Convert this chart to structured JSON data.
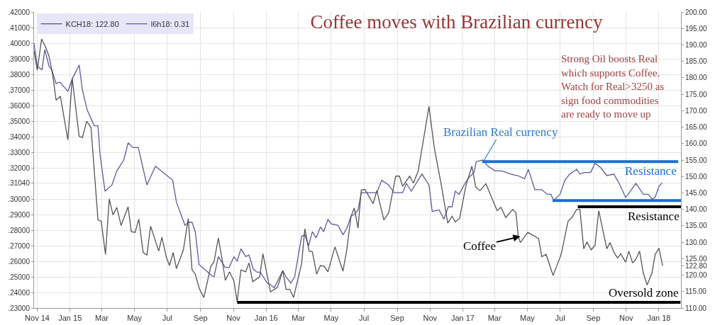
{
  "chart_data": {
    "type": "line",
    "title": "Coffee moves with Brazilian currency",
    "annotations": [
      "Strong Oil boosts Real\nwhich supports Coffee.\nWatch for Real>3250 as\nsign food commodities\nare ready to move up",
      {
        "text": "Brazilian Real currency",
        "x": "2017-02-08",
        "y": 0.324
      },
      {
        "text": "Coffee",
        "x": "2017-04-18",
        "y": 0.276
      }
    ],
    "series": [
      {
        "name": "KCH18: 122.80",
        "color": "#555555",
        "axis": "y2",
        "x": [
          "2014-10-26",
          "2014-11-01",
          "2014-11-09",
          "2014-11-17",
          "2014-11-23",
          "2014-11-30",
          "2014-12-06",
          "2014-12-14",
          "2014-12-28",
          "2015-01-05",
          "2015-01-18",
          "2015-01-24",
          "2015-02-01",
          "2015-02-09",
          "2015-02-22",
          "2015-02-28",
          "2015-03-08",
          "2015-03-15",
          "2015-03-22",
          "2015-03-29",
          "2015-04-06",
          "2015-04-19",
          "2015-04-25",
          "2015-05-02",
          "2015-05-09",
          "2015-05-17",
          "2015-05-24",
          "2015-05-31",
          "2015-06-15",
          "2015-06-21",
          "2015-06-29",
          "2015-07-05",
          "2015-07-12",
          "2015-07-18",
          "2015-07-31",
          "2015-08-09",
          "2015-08-16",
          "2015-08-22",
          "2015-08-30",
          "2015-09-07",
          "2015-09-20",
          "2015-09-26",
          "2015-10-04",
          "2015-10-11",
          "2015-10-17",
          "2015-10-25",
          "2015-11-02",
          "2015-11-08",
          "2015-11-15",
          "2015-11-24",
          "2015-11-30",
          "2015-12-07",
          "2015-12-20",
          "2015-12-26",
          "2016-01-09",
          "2016-01-22",
          "2016-02-01",
          "2016-02-07",
          "2016-02-14",
          "2016-02-21",
          "2016-03-07",
          "2016-03-13",
          "2016-03-21",
          "2016-03-27",
          "2016-04-04",
          "2016-04-11",
          "2016-04-18",
          "2016-04-25",
          "2016-05-08",
          "2016-05-23",
          "2016-05-30",
          "2016-06-07",
          "2016-06-13",
          "2016-06-20",
          "2016-06-26",
          "2016-07-03",
          "2016-07-18",
          "2016-07-25",
          "2016-08-07",
          "2016-08-16",
          "2016-08-29",
          "2016-09-05",
          "2016-09-11",
          "2016-09-24",
          "2016-10-01",
          "2016-10-10",
          "2016-10-30",
          "2016-11-09",
          "2016-11-22",
          "2016-12-04",
          "2016-12-12",
          "2016-12-18",
          "2016-12-26",
          "2017-01-07",
          "2017-01-18",
          "2017-01-25",
          "2017-02-02",
          "2017-02-13",
          "2017-03-02",
          "2017-03-06",
          "2017-03-13",
          "2017-03-22",
          "2017-04-04",
          "2017-04-10",
          "2017-04-14",
          "2017-04-18",
          "2017-05-02",
          "2017-05-22",
          "2017-05-28",
          "2017-06-05",
          "2017-06-18",
          "2017-06-27",
          "2017-07-03",
          "2017-07-16",
          "2017-07-23",
          "2017-08-01",
          "2017-08-07",
          "2017-08-14",
          "2017-08-20",
          "2017-08-28",
          "2017-09-04",
          "2017-09-11",
          "2017-09-26",
          "2017-10-02",
          "2017-10-10",
          "2017-10-16",
          "2017-10-22",
          "2017-10-31",
          "2017-11-06",
          "2017-11-13",
          "2017-11-19",
          "2017-11-26",
          "2017-12-03",
          "2017-12-10",
          "2017-12-19",
          "2017-12-25",
          "2018-01-01",
          "2018-01-08"
        ],
        "values": [
          188.2,
          182.3,
          191.8,
          189.2,
          186.5,
          180.6,
          173.2,
          174.4,
          161.1,
          179.9,
          162.2,
          161.8,
          166.8,
          164.9,
          136.8,
          136.4,
          126.3,
          143.2,
          138.3,
          140.6,
          135.1,
          140.8,
          133.2,
          133.0,
          137.0,
          126.9,
          126.1,
          134.9,
          127.3,
          131.5,
          125.6,
          122.9,
          126.9,
          122.0,
          127.7,
          137.2,
          121.6,
          120.3,
          115.7,
          113.2,
          122.7,
          124.1,
          131.3,
          124.8,
          118.4,
          121.0,
          118.2,
          111.9,
          121.6,
          121.0,
          123.7,
          118.0,
          119.5,
          126.5,
          114.9,
          116.3,
          121.4,
          115.7,
          115.7,
          113.2,
          123.5,
          134.1,
          127.3,
          127.1,
          120.3,
          122.9,
          122.7,
          121.0,
          128.6,
          121.2,
          127.7,
          137.9,
          140.4,
          134.3,
          145.9,
          146.0,
          141.7,
          145.7,
          136.8,
          138.9,
          150.1,
          150.1,
          147.0,
          150.1,
          148.0,
          151.6,
          171.3,
          158.6,
          147.4,
          135.8,
          137.9,
          136.2,
          137.2,
          147.4,
          153.1,
          146.8,
          145.7,
          147.8,
          141.1,
          139.6,
          140.6,
          137.5,
          140.0,
          138.9,
          132.0,
          129.9,
          133.0,
          131.1,
          125.6,
          126.3,
          119.9,
          123.7,
          126.3,
          136.4,
          137.5,
          140.0,
          140.0,
          128.0,
          130.1,
          127.7,
          129.0,
          139.6,
          128.0,
          129.9,
          126.7,
          125.2,
          126.5,
          123.9,
          127.3,
          123.7,
          124.8,
          127.3,
          120.6,
          117.0,
          120.6,
          126.3,
          128.2,
          122.8
        ]
      },
      {
        "name": "l6h18: 0.31",
        "color": "#5a5aa0",
        "axis": "y",
        "x": [
          "2014-10-26",
          "2014-11-01",
          "2014-11-10",
          "2014-11-15",
          "2014-11-23",
          "2014-11-28",
          "2014-12-06",
          "2014-12-13",
          "2014-12-28",
          "2015-01-05",
          "2015-01-18",
          "2015-01-24",
          "2015-02-02",
          "2015-02-15",
          "2015-02-22",
          "2015-02-26",
          "2015-03-07",
          "2015-03-20",
          "2015-03-29",
          "2015-04-11",
          "2015-04-19",
          "2015-04-28",
          "2015-05-08",
          "2015-05-24",
          "2015-06-09",
          "2015-07-11",
          "2015-07-18",
          "2015-08-03",
          "2015-08-09",
          "2015-08-16",
          "2015-08-22",
          "2015-08-29",
          "2015-09-21",
          "2015-09-26",
          "2015-10-04",
          "2015-10-17",
          "2015-10-24",
          "2015-11-02",
          "2015-11-08",
          "2015-11-15",
          "2015-11-24",
          "2015-11-30",
          "2015-12-08",
          "2015-12-15",
          "2015-12-21",
          "2016-01-03",
          "2016-01-09",
          "2016-01-16",
          "2016-02-01",
          "2016-02-07",
          "2016-02-16",
          "2016-02-23",
          "2016-03-07",
          "2016-03-13",
          "2016-03-20",
          "2016-03-27",
          "2016-04-03",
          "2016-04-11",
          "2016-04-17",
          "2016-04-25",
          "2016-05-01",
          "2016-05-14",
          "2016-05-23",
          "2016-05-30",
          "2016-06-07",
          "2016-06-13",
          "2016-06-20",
          "2016-06-26",
          "2016-07-08",
          "2016-07-25",
          "2016-08-03",
          "2016-08-16",
          "2016-08-26",
          "2016-09-11",
          "2016-09-18",
          "2016-09-27",
          "2016-10-17",
          "2016-10-30",
          "2016-11-05",
          "2016-11-18",
          "2016-11-27",
          "2016-12-05",
          "2016-12-12",
          "2016-12-18",
          "2016-12-25",
          "2017-01-05",
          "2017-01-13",
          "2017-01-22",
          "2017-01-26",
          "2017-02-07",
          "2017-02-17",
          "2017-03-02",
          "2017-03-15",
          "2017-03-31",
          "2017-04-13",
          "2017-04-26",
          "2017-05-03",
          "2017-05-15",
          "2017-05-28",
          "2017-06-07",
          "2017-06-14",
          "2017-06-19",
          "2017-07-01",
          "2017-07-10",
          "2017-07-19",
          "2017-08-01",
          "2017-08-07",
          "2017-08-15",
          "2017-08-27",
          "2017-09-04",
          "2017-09-15",
          "2017-09-26",
          "2017-10-09",
          "2017-10-19",
          "2017-10-31",
          "2017-11-07",
          "2017-11-19",
          "2017-12-03",
          "2017-12-12",
          "2017-12-19",
          "2017-12-25",
          "2018-01-01",
          "2018-01-07"
        ],
        "values": [
          0.4,
          0.385,
          0.383,
          0.396,
          0.385,
          0.383,
          0.374,
          0.375,
          0.369,
          0.377,
          0.386,
          0.37,
          0.357,
          0.347,
          0.347,
          0.328,
          0.305,
          0.309,
          0.318,
          0.325,
          0.336,
          0.333,
          0.333,
          0.309,
          0.321,
          0.312,
          0.298,
          0.283,
          0.285,
          0.285,
          0.279,
          0.258,
          0.251,
          0.25,
          0.263,
          0.256,
          0.256,
          0.263,
          0.26,
          0.268,
          0.263,
          0.264,
          0.255,
          0.253,
          0.253,
          0.246,
          0.245,
          0.243,
          0.254,
          0.25,
          0.246,
          0.25,
          0.276,
          0.277,
          0.27,
          0.279,
          0.275,
          0.282,
          0.279,
          0.287,
          0.284,
          0.283,
          0.277,
          0.281,
          0.289,
          0.29,
          0.293,
          0.304,
          0.304,
          0.304,
          0.312,
          0.309,
          0.304,
          0.304,
          0.31,
          0.305,
          0.316,
          0.309,
          0.292,
          0.293,
          0.287,
          0.295,
          0.295,
          0.305,
          0.303,
          0.31,
          0.314,
          0.317,
          0.324,
          0.325,
          0.321,
          0.318,
          0.318,
          0.316,
          0.315,
          0.313,
          0.319,
          0.306,
          0.306,
          0.303,
          0.303,
          0.299,
          0.303,
          0.312,
          0.316,
          0.319,
          0.316,
          0.317,
          0.317,
          0.323,
          0.32,
          0.315,
          0.316,
          0.31,
          0.301,
          0.304,
          0.31,
          0.303,
          0.303,
          0.3,
          0.301,
          0.308,
          0.3104
        ]
      },
      {
        "name": "Resistance",
        "color": "#1a6fd0",
        "axis": "y",
        "x": [
          "2017-02-06",
          "2018-02-06"
        ],
        "values": [
          0.324,
          0.324
        ]
      },
      {
        "color": "#1a6fd0",
        "axis": "y",
        "x": [
          "2017-06-17",
          "2018-02-11"
        ],
        "values": [
          0.299,
          0.299
        ]
      },
      {
        "name": "Resistance",
        "color": "#000000",
        "axis": "y2",
        "x": [
          "2017-08-03",
          "2018-02-11"
        ],
        "values": [
          140.8,
          140.8
        ]
      },
      {
        "name": "Oversold zone",
        "color": "#000000",
        "axis": "y2",
        "x": [
          "2015-11-08",
          "2018-02-10"
        ],
        "values": [
          111.7,
          111.7
        ]
      }
    ],
    "xlim": [
      "2014-10-26",
      "2018-02-11"
    ],
    "xticks": [
      {
        "value": "2014-11-01",
        "label": "Nov 14"
      },
      {
        "value": "2015-01-01",
        "label": "Jan 15"
      },
      {
        "value": "2015-03-01",
        "label": "Mar"
      },
      {
        "value": "2015-05-01",
        "label": "May"
      },
      {
        "value": "2015-07-01",
        "label": "Jul"
      },
      {
        "value": "2015-09-01",
        "label": "Sep"
      },
      {
        "value": "2015-11-01",
        "label": "Nov"
      },
      {
        "value": "2016-01-01",
        "label": "Jan 16"
      },
      {
        "value": "2016-03-01",
        "label": "Mar"
      },
      {
        "value": "2016-05-01",
        "label": "May"
      },
      {
        "value": "2016-07-01",
        "label": "Jul"
      },
      {
        "value": "2016-09-01",
        "label": "Sep"
      },
      {
        "value": "2016-11-01",
        "label": "Nov"
      },
      {
        "value": "2017-01-01",
        "label": "Jan 17"
      },
      {
        "value": "2017-03-01",
        "label": "Mar"
      },
      {
        "value": "2017-05-01",
        "label": "May"
      },
      {
        "value": "2017-07-01",
        "label": "Jul"
      },
      {
        "value": "2017-09-01",
        "label": "Sep"
      },
      {
        "value": "2017-11-01",
        "label": "Nov"
      },
      {
        "value": "2018-01-01",
        "label": "Jan 18"
      }
    ],
    "ylim": [
      0.23,
      0.42
    ],
    "yticks": [
      {
        "value": 0.23,
        "label": ".23000"
      },
      {
        "value": 0.24,
        "label": ".24000"
      },
      {
        "value": 0.25,
        "label": ".25000"
      },
      {
        "value": 0.26,
        "label": ".26000"
      },
      {
        "value": 0.27,
        "label": ".27000"
      },
      {
        "value": 0.28,
        "label": ".28000"
      },
      {
        "value": 0.29,
        "label": ".29000"
      },
      {
        "value": 0.3,
        "label": ".30000"
      },
      {
        "value": 0.3104,
        "label": ".31040"
      },
      {
        "value": 0.32,
        "label": ".32000"
      },
      {
        "value": 0.33,
        "label": ".33000"
      },
      {
        "value": 0.34,
        "label": ".34000"
      },
      {
        "value": 0.35,
        "label": ".35000"
      },
      {
        "value": 0.36,
        "label": ".36000"
      },
      {
        "value": 0.37,
        "label": ".37000"
      },
      {
        "value": 0.38,
        "label": ".38000"
      },
      {
        "value": 0.39,
        "label": ".39000"
      },
      {
        "value": 0.4,
        "label": ".40000"
      },
      {
        "value": 0.41,
        "label": ".41000"
      },
      {
        "value": 0.42,
        "label": ".42000"
      }
    ],
    "y2lim": [
      110,
      200
    ],
    "y2ticks": [
      {
        "value": 110,
        "label": "110.00"
      },
      {
        "value": 115,
        "label": "115.00"
      },
      {
        "value": 120,
        "label": "120.00"
      },
      {
        "value": 122.8,
        "label": "122.80"
      },
      {
        "value": 125,
        "label": "125.00"
      },
      {
        "value": 130,
        "label": "130.00"
      },
      {
        "value": 135,
        "label": "135.00"
      },
      {
        "value": 140,
        "label": "140.00"
      },
      {
        "value": 145,
        "label": "145.00"
      },
      {
        "value": 150,
        "label": "150.00"
      },
      {
        "value": 155,
        "label": "155.00"
      },
      {
        "value": 160,
        "label": "160.00"
      },
      {
        "value": 165,
        "label": "165.00"
      },
      {
        "value": 170,
        "label": "170.00"
      },
      {
        "value": 175,
        "label": "175.00"
      },
      {
        "value": 180,
        "label": "180.00"
      },
      {
        "value": 185,
        "label": "185.00"
      },
      {
        "value": 190,
        "label": "190.00"
      },
      {
        "value": 195,
        "label": "195.00"
      },
      {
        "value": 200,
        "label": "200.00"
      }
    ],
    "grid": true,
    "legend": "top left",
    "line_style": "solid",
    "marker": "none"
  }
}
